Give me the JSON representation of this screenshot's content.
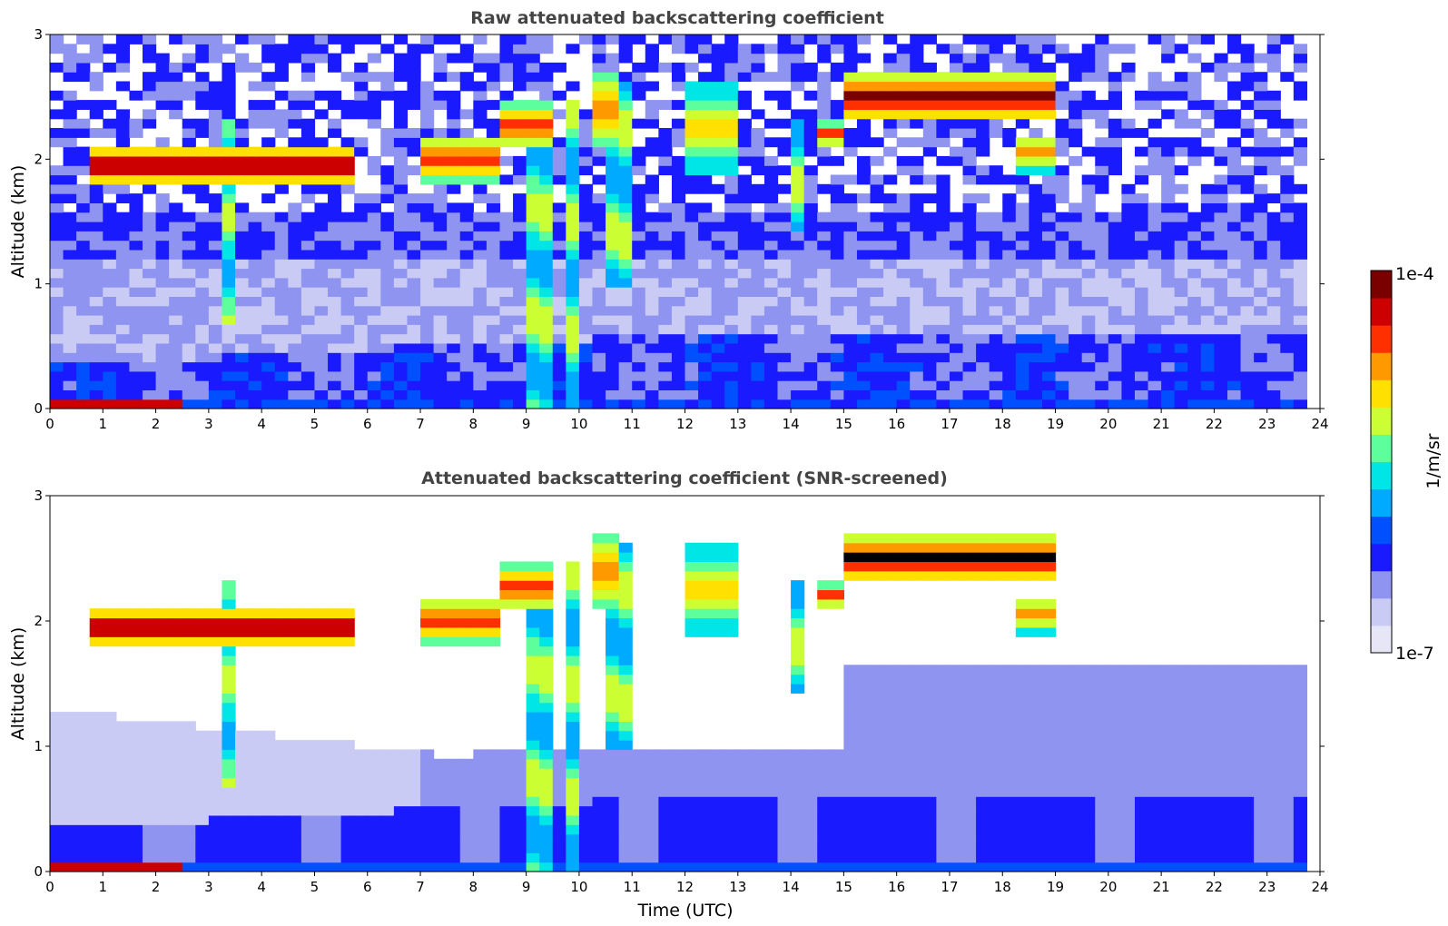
{
  "chart_data": [
    {
      "type": "heatmap",
      "title": "Raw attenuated backscattering coefficient",
      "xlabel": "",
      "ylabel": "Altitude (km)",
      "xlim": [
        0,
        24
      ],
      "ylim": [
        0,
        3
      ],
      "xticks": [
        "0",
        "1",
        "2",
        "3",
        "4",
        "5",
        "6",
        "7",
        "8",
        "9",
        "10",
        "11",
        "12",
        "13",
        "14",
        "15",
        "16",
        "17",
        "18",
        "19",
        "20",
        "21",
        "22",
        "23",
        "24"
      ],
      "yticks": [
        "0",
        "1",
        "2",
        "3"
      ],
      "screened": false,
      "cloud_layers": [
        {
          "x": [
            0.7,
            5.8
          ],
          "y": [
            1.8,
            2.1
          ],
          "level": 1.0
        },
        {
          "x": [
            7.1,
            8.6
          ],
          "y": [
            1.8,
            2.2
          ],
          "level": 0.9
        },
        {
          "x": [
            8.4,
            9.5
          ],
          "y": [
            2.1,
            2.45
          ],
          "level": 0.9
        },
        {
          "x": [
            10.2,
            10.8
          ],
          "y": [
            2.1,
            2.7
          ],
          "level": 0.85
        },
        {
          "x": [
            11.9,
            12.9
          ],
          "y": [
            1.9,
            2.6
          ],
          "level": 0.75
        },
        {
          "x": [
            14.6,
            15.1
          ],
          "y": [
            2.1,
            2.3
          ],
          "level": 0.9
        },
        {
          "x": [
            15.0,
            19.0
          ],
          "y": [
            2.3,
            2.7
          ],
          "level": 1.0
        },
        {
          "x": [
            18.3,
            19.1
          ],
          "y": [
            1.9,
            2.2
          ],
          "level": 0.8
        },
        {
          "x": [
            0.05,
            2.6
          ],
          "y": [
            0.0,
            0.06
          ],
          "level": 1.0
        }
      ],
      "precipitation_shafts": [
        {
          "x": [
            3.2,
            3.4
          ],
          "y": [
            0.7,
            2.3
          ]
        },
        {
          "x": [
            9.0,
            9.4
          ],
          "y": [
            0.0,
            2.4
          ]
        },
        {
          "x": [
            9.7,
            10.1
          ],
          "y": [
            0.0,
            2.5
          ]
        },
        {
          "x": [
            10.6,
            11.0
          ],
          "y": [
            1.0,
            2.6
          ]
        },
        {
          "x": [
            14.0,
            14.3
          ],
          "y": [
            1.4,
            2.3
          ]
        }
      ]
    },
    {
      "type": "heatmap",
      "title": "Attenuated backscattering coefficient (SNR-screened)",
      "xlabel": "Time (UTC)",
      "ylabel": "Altitude (km)",
      "xlim": [
        0,
        24
      ],
      "ylim": [
        0,
        3
      ],
      "xticks": [
        "0",
        "1",
        "2",
        "3",
        "4",
        "5",
        "6",
        "7",
        "8",
        "9",
        "10",
        "11",
        "12",
        "13",
        "14",
        "15",
        "16",
        "17",
        "18",
        "19",
        "20",
        "21",
        "22",
        "23",
        "24"
      ],
      "yticks": [
        "0",
        "1",
        "2",
        "3"
      ],
      "screened": true
    }
  ],
  "colorbar": {
    "label": "1/m/sr",
    "max_label": "1e-4",
    "min_label": "1e-7",
    "colors": [
      "#e6e6f7",
      "#c9cbf5",
      "#8f94f0",
      "#1a1aff",
      "#0050ff",
      "#00aaff",
      "#00e5e5",
      "#5cff9c",
      "#ccff33",
      "#ffe000",
      "#ff9900",
      "#ff3000",
      "#cc0000",
      "#7a0000"
    ]
  }
}
